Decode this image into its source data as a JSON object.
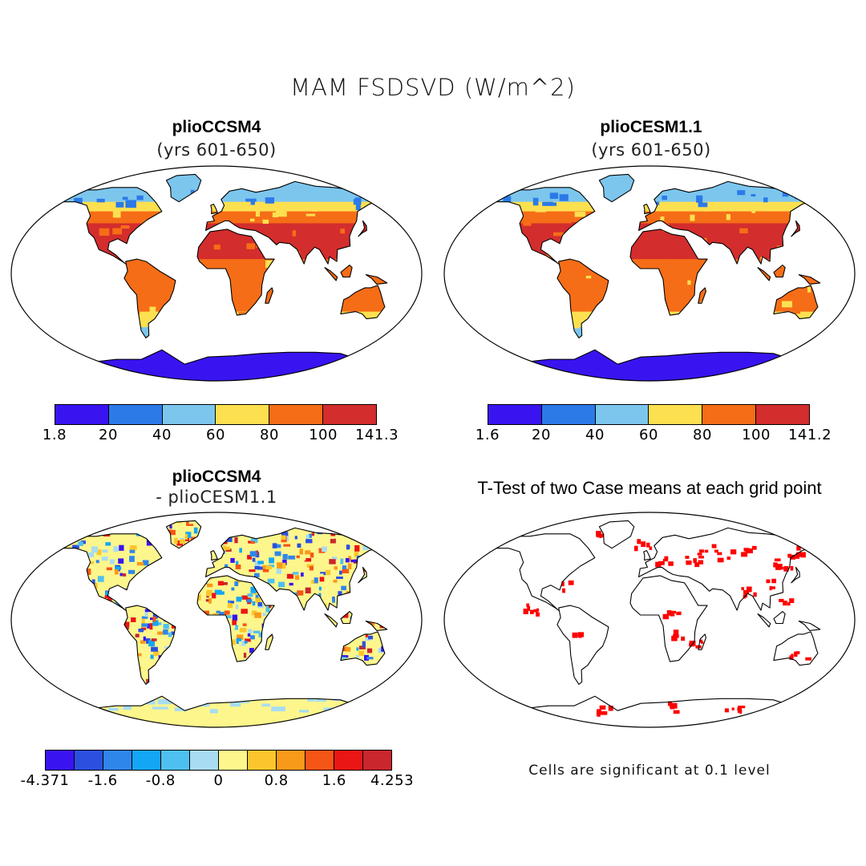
{
  "figure": {
    "title": "MAM FSDSVD (W/m^2)"
  },
  "panels": [
    {
      "id": "ccsm4",
      "title": "plioCCSM4",
      "subtitle": "(yrs 601-650)",
      "colorbar": {
        "colors": [
          "#3a14f0",
          "#2c7ae8",
          "#7cc6ee",
          "#fde050",
          "#f66d17",
          "#d32d2d"
        ],
        "labels": [
          "1.8",
          "20",
          "40",
          "60",
          "80",
          "100",
          "141.3"
        ]
      }
    },
    {
      "id": "cesm11",
      "title": "plioCESM1.1",
      "subtitle": "(yrs 601-650)",
      "colorbar": {
        "colors": [
          "#3a14f0",
          "#2c7ae8",
          "#7cc6ee",
          "#fde050",
          "#f66d17",
          "#d32d2d"
        ],
        "labels": [
          "1.6",
          "20",
          "40",
          "60",
          "80",
          "100",
          "141.2"
        ]
      }
    },
    {
      "id": "diff",
      "title": "plioCCSM4",
      "subtitle": "- plioCESM1.1",
      "colorbar": {
        "colors": [
          "#3a14f0",
          "#2c4fe0",
          "#2f86ea",
          "#13a6f5",
          "#4ec0ef",
          "#a7dcf2",
          "#fdf68c",
          "#fbc62b",
          "#f9991a",
          "#f55515",
          "#ea1515",
          "#c9262d"
        ],
        "labels": [
          "-4.371",
          "-1.6",
          "-0.8",
          "0",
          "0.8",
          "1.6",
          "4.253"
        ]
      }
    },
    {
      "id": "ttest",
      "title": "T-Test of two Case means at each grid point",
      "footnote": "Cells are significant at 0.1 level",
      "sig_color": "#ff0000"
    }
  ]
}
